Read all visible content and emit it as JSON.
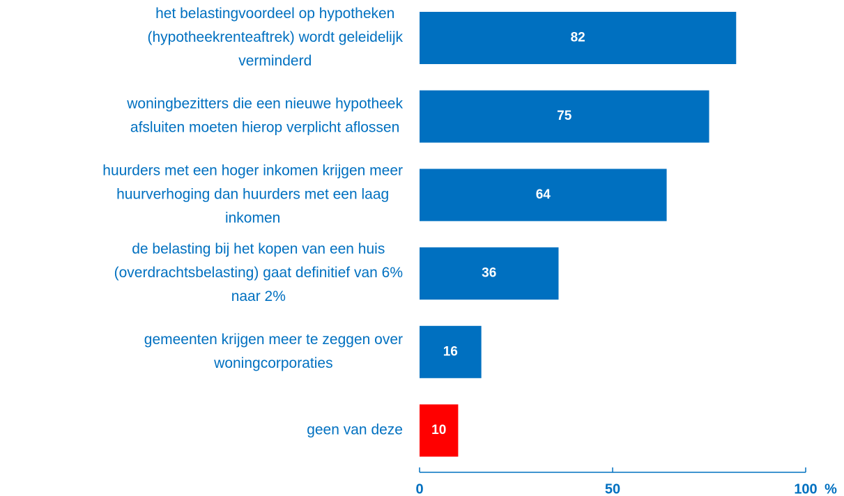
{
  "chart_data": {
    "type": "bar",
    "orientation": "horizontal",
    "categories": [
      [
        "het belastingvoordeel op hypotheken",
        "(hypotheekrenteaftrek) wordt geleidelijk",
        "verminderd"
      ],
      [
        "woningbezitters die een nieuwe hypotheek",
        "afsluiten moeten hierop verplicht aflossen"
      ],
      [
        "huurders met een hoger inkomen krijgen meer",
        "huurverhoging dan huurders met een laag",
        "inkomen"
      ],
      [
        "de belasting bij het kopen van een huis",
        "(overdrachtsbelasting) gaat definitief van 6%",
        "naar 2%"
      ],
      [
        "gemeenten krijgen meer te zeggen over",
        "woningcorporaties"
      ],
      [
        "geen van deze"
      ]
    ],
    "values": [
      82,
      75,
      64,
      36,
      16,
      10
    ],
    "colors": [
      "#0070c0",
      "#0070c0",
      "#0070c0",
      "#0070c0",
      "#0070c0",
      "#ff0000"
    ],
    "xlim": [
      0,
      100
    ],
    "xticks": [
      0,
      50,
      100
    ],
    "xlabel": "%",
    "grid": false
  }
}
